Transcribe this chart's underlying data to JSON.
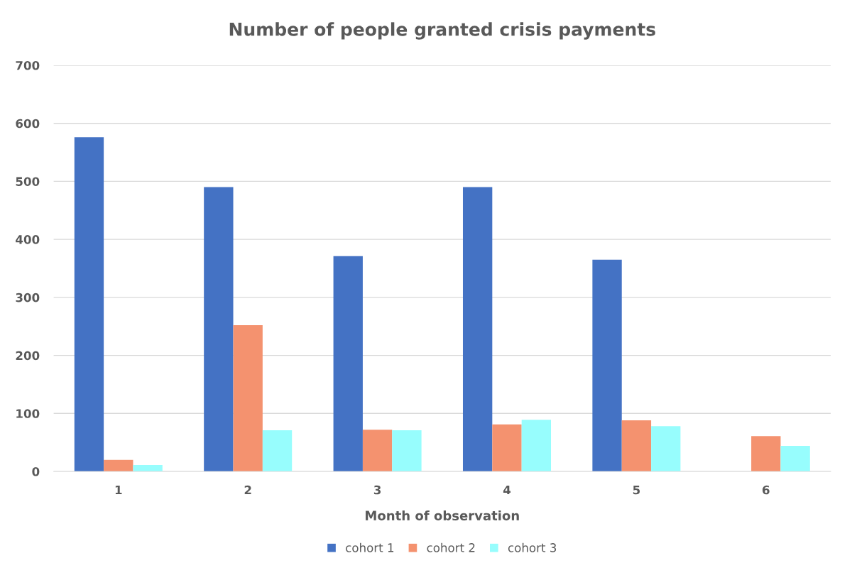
{
  "chart_data": {
    "type": "bar",
    "title": "Number of people granted crisis payments",
    "xlabel": "Month of observation",
    "categories": [
      "1",
      "2",
      "3",
      "4",
      "5",
      "6"
    ],
    "series": [
      {
        "name": "cohort 1",
        "color": "#4472c4",
        "values": [
          576,
          490,
          371,
          490,
          365,
          null
        ]
      },
      {
        "name": "cohort 2",
        "color": "#f4926f",
        "values": [
          20,
          252,
          72,
          81,
          88,
          61
        ]
      },
      {
        "name": "cohort 3",
        "color": "#97fdfd",
        "values": [
          11,
          71,
          71,
          89,
          78,
          44
        ]
      }
    ],
    "ylim": [
      0,
      700
    ],
    "yticks": [
      0,
      100,
      200,
      300,
      400,
      500,
      600,
      700
    ],
    "grid": "y",
    "legend": "bottom"
  }
}
